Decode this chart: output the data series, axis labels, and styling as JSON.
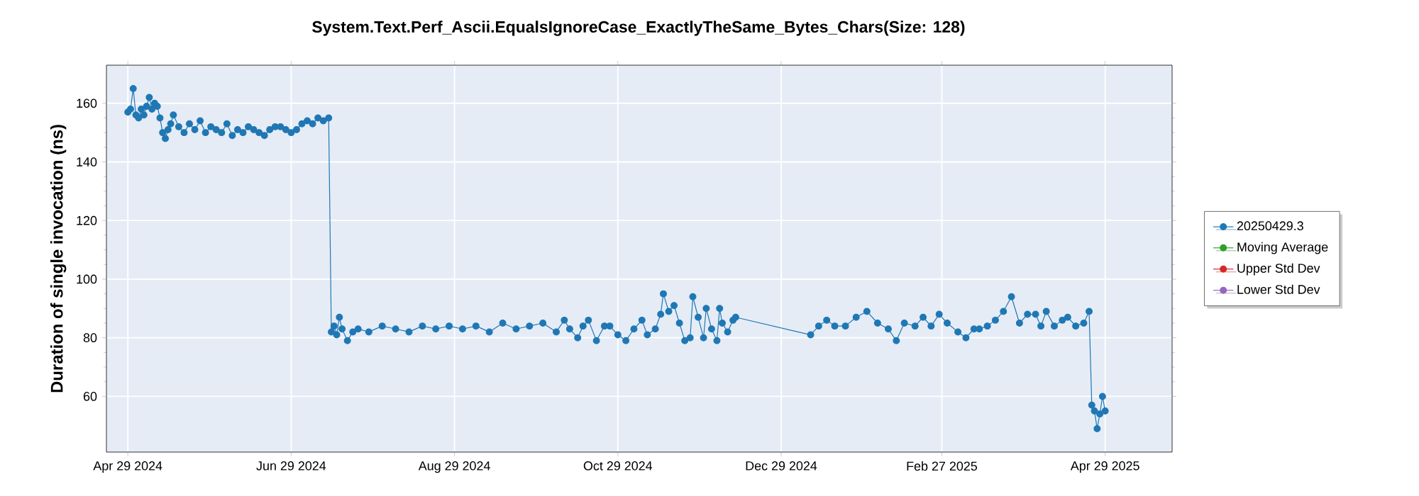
{
  "chart_data": {
    "type": "line",
    "title": "System.Text.Perf_Ascii.EqualsIgnoreCase_ExactlyTheSame_Bytes_Chars(Size: 128)",
    "ylabel": "Duration of single invocation (ns)",
    "x": [
      "2024-04-29",
      "2024-04-30",
      "2024-05-01",
      "2024-05-02",
      "2024-05-03",
      "2024-05-04",
      "2024-05-05",
      "2024-05-06",
      "2024-05-07",
      "2024-05-08",
      "2024-05-09",
      "2024-05-10",
      "2024-05-11",
      "2024-05-12",
      "2024-05-13",
      "2024-05-14",
      "2024-05-15",
      "2024-05-16",
      "2024-05-18",
      "2024-05-20",
      "2024-05-22",
      "2024-05-24",
      "2024-05-26",
      "2024-05-28",
      "2024-05-30",
      "2024-06-01",
      "2024-06-03",
      "2024-06-05",
      "2024-06-07",
      "2024-06-09",
      "2024-06-11",
      "2024-06-13",
      "2024-06-15",
      "2024-06-17",
      "2024-06-19",
      "2024-06-21",
      "2024-06-23",
      "2024-06-25",
      "2024-06-27",
      "2024-06-29",
      "2024-07-01",
      "2024-07-03",
      "2024-07-05",
      "2024-07-07",
      "2024-07-09",
      "2024-07-11",
      "2024-07-13",
      "2024-07-14",
      "2024-07-15",
      "2024-07-16",
      "2024-07-17",
      "2024-07-18",
      "2024-07-20",
      "2024-07-22",
      "2024-07-24",
      "2024-07-28",
      "2024-08-02",
      "2024-08-07",
      "2024-08-12",
      "2024-08-17",
      "2024-08-22",
      "2024-08-27",
      "2024-09-01",
      "2024-09-06",
      "2024-09-11",
      "2024-09-16",
      "2024-09-21",
      "2024-09-26",
      "2024-10-01",
      "2024-10-06",
      "2024-10-09",
      "2024-10-11",
      "2024-10-14",
      "2024-10-16",
      "2024-10-18",
      "2024-10-21",
      "2024-10-24",
      "2024-10-26",
      "2024-10-29",
      "2024-11-01",
      "2024-11-04",
      "2024-11-07",
      "2024-11-09",
      "2024-11-12",
      "2024-11-14",
      "2024-11-15",
      "2024-11-17",
      "2024-11-19",
      "2024-11-21",
      "2024-11-23",
      "2024-11-25",
      "2024-11-26",
      "2024-11-28",
      "2024-11-30",
      "2024-12-01",
      "2024-12-03",
      "2024-12-05",
      "2024-12-06",
      "2024-12-07",
      "2024-12-09",
      "2024-12-11",
      "2024-12-12",
      "2025-01-09",
      "2025-01-12",
      "2025-01-15",
      "2025-01-18",
      "2025-01-22",
      "2025-01-26",
      "2025-01-30",
      "2025-02-03",
      "2025-02-07",
      "2025-02-10",
      "2025-02-13",
      "2025-02-17",
      "2025-02-20",
      "2025-02-23",
      "2025-02-26",
      "2025-03-01",
      "2025-03-05",
      "2025-03-08",
      "2025-03-11",
      "2025-03-13",
      "2025-03-16",
      "2025-03-19",
      "2025-03-22",
      "2025-03-25",
      "2025-03-28",
      "2025-03-31",
      "2025-04-03",
      "2025-04-05",
      "2025-04-07",
      "2025-04-10",
      "2025-04-13",
      "2025-04-15",
      "2025-04-18",
      "2025-04-21",
      "2025-04-23",
      "2025-04-24",
      "2025-04-25",
      "2025-04-26",
      "2025-04-27",
      "2025-04-28",
      "2025-04-29"
    ],
    "series": [
      {
        "name": "20250429.3",
        "color": "#1f77b4",
        "values": [
          157,
          158,
          165,
          156,
          155,
          158,
          156,
          159,
          162,
          158,
          160,
          159,
          155,
          150,
          148,
          151,
          153,
          156,
          152,
          150,
          153,
          151,
          154,
          150,
          152,
          151,
          150,
          153,
          149,
          151,
          150,
          152,
          151,
          150,
          149,
          151,
          152,
          152,
          151,
          150,
          151,
          153,
          154,
          153,
          155,
          154,
          155,
          82,
          84,
          81,
          87,
          83,
          79,
          82,
          83,
          82,
          84,
          83,
          82,
          84,
          83,
          84,
          83,
          84,
          82,
          85,
          83,
          84,
          85,
          82,
          86,
          83,
          80,
          84,
          86,
          79,
          84,
          84,
          81,
          79,
          83,
          86,
          81,
          83,
          88,
          95,
          89,
          91,
          85,
          79,
          80,
          94,
          87,
          80,
          90,
          83,
          79,
          90,
          85,
          82,
          86,
          87,
          81,
          84,
          86,
          84,
          84,
          87,
          89,
          85,
          83,
          79,
          85,
          84,
          87,
          84,
          88,
          85,
          82,
          80,
          83,
          83,
          84,
          86,
          89,
          94,
          85,
          88,
          88,
          84,
          89,
          84,
          86,
          87,
          84,
          85,
          89,
          57,
          55,
          49,
          54,
          60,
          55
        ]
      },
      {
        "name": "Moving Average",
        "color": "#2ca02c",
        "values": [
          null,
          null,
          null,
          null,
          null,
          null,
          null,
          null,
          null,
          null,
          null,
          null,
          null,
          null,
          null,
          null,
          null,
          null,
          null,
          null,
          null,
          null,
          null,
          null,
          null,
          null,
          null,
          null,
          null,
          null,
          null,
          null,
          null,
          null,
          null,
          null,
          null,
          null,
          null,
          null,
          null,
          null,
          null,
          null,
          null,
          null,
          null,
          null,
          null,
          null,
          null,
          null,
          null,
          null,
          null,
          null,
          null,
          null,
          null,
          null,
          null,
          null,
          null,
          null,
          null,
          null,
          null,
          null,
          null,
          null,
          null,
          null,
          null,
          null,
          null,
          null,
          null,
          null,
          null,
          null,
          null,
          null,
          null,
          null,
          null,
          null,
          null,
          null,
          null,
          null,
          null,
          null,
          null,
          null,
          null,
          null,
          null,
          null,
          null,
          null,
          null,
          null,
          null,
          null,
          null,
          null,
          null,
          null,
          null,
          null,
          null,
          null,
          null,
          null,
          null,
          null,
          null,
          null,
          null,
          null,
          null,
          null,
          null,
          null,
          null,
          null,
          null,
          null,
          null,
          null,
          null,
          null,
          null,
          null,
          null,
          null,
          null,
          null,
          null,
          null,
          null,
          null,
          null
        ]
      },
      {
        "name": "Upper Std Dev",
        "color": "#d62728",
        "values": [
          null,
          null,
          null,
          null,
          null,
          null,
          null,
          null,
          null,
          null,
          null,
          null,
          null,
          null,
          null,
          null,
          null,
          null,
          null,
          null,
          null,
          null,
          null,
          null,
          null,
          null,
          null,
          null,
          null,
          null,
          null,
          null,
          null,
          null,
          null,
          null,
          null,
          null,
          null,
          null,
          null,
          null,
          null,
          null,
          null,
          null,
          null,
          null,
          null,
          null,
          null,
          null,
          null,
          null,
          null,
          null,
          null,
          null,
          null,
          null,
          null,
          null,
          null,
          null,
          null,
          null,
          null,
          null,
          null,
          null,
          null,
          null,
          null,
          null,
          null,
          null,
          null,
          null,
          null,
          null,
          null,
          null,
          null,
          null,
          null,
          null,
          null,
          null,
          null,
          null,
          null,
          null,
          null,
          null,
          null,
          null,
          null,
          null,
          null,
          null,
          null,
          null,
          null,
          null,
          null,
          null,
          null,
          null,
          null,
          null,
          null,
          null,
          null,
          null,
          null,
          null,
          null,
          null,
          null,
          null,
          null,
          null,
          null,
          null,
          null,
          null,
          null,
          null,
          null,
          null,
          null,
          null,
          null,
          null,
          null,
          null,
          null,
          null,
          null,
          null,
          null,
          null,
          null
        ]
      },
      {
        "name": "Lower Std Dev",
        "color": "#9467bd",
        "values": [
          null,
          null,
          null,
          null,
          null,
          null,
          null,
          null,
          null,
          null,
          null,
          null,
          null,
          null,
          null,
          null,
          null,
          null,
          null,
          null,
          null,
          null,
          null,
          null,
          null,
          null,
          null,
          null,
          null,
          null,
          null,
          null,
          null,
          null,
          null,
          null,
          null,
          null,
          null,
          null,
          null,
          null,
          null,
          null,
          null,
          null,
          null,
          null,
          null,
          null,
          null,
          null,
          null,
          null,
          null,
          null,
          null,
          null,
          null,
          null,
          null,
          null,
          null,
          null,
          null,
          null,
          null,
          null,
          null,
          null,
          null,
          null,
          null,
          null,
          null,
          null,
          null,
          null,
          null,
          null,
          null,
          null,
          null,
          null,
          null,
          null,
          null,
          null,
          null,
          null,
          null,
          null,
          null,
          null,
          null,
          null,
          null,
          null,
          null,
          null,
          null,
          null,
          null,
          null,
          null,
          null,
          null,
          null,
          null,
          null,
          null,
          null,
          null,
          null,
          null,
          null,
          null,
          null,
          null,
          null,
          null,
          null,
          null,
          null,
          null,
          null,
          null,
          null,
          null,
          null,
          null,
          null,
          null,
          null,
          null,
          null,
          null,
          null,
          null,
          null,
          null,
          null,
          null
        ]
      }
    ],
    "xlim": [
      "2024-04-21",
      "2025-05-24"
    ],
    "xticks": [
      {
        "value": "2024-04-29",
        "label": "Apr 29 2024"
      },
      {
        "value": "2024-06-29",
        "label": "Jun 29 2024"
      },
      {
        "value": "2024-08-29",
        "label": "Aug 29 2024"
      },
      {
        "value": "2024-10-29",
        "label": "Oct 29 2024"
      },
      {
        "value": "2024-12-29",
        "label": "Dec 29 2024"
      },
      {
        "value": "2025-02-27",
        "label": "Feb 27 2025"
      },
      {
        "value": "2025-04-29",
        "label": "Apr 29 2025"
      }
    ],
    "ylim": [
      41,
      173
    ],
    "yticks": [
      60,
      80,
      100,
      120,
      140,
      160
    ],
    "grid": true,
    "legend": "right",
    "marker": "circle",
    "line_style": "solid"
  }
}
